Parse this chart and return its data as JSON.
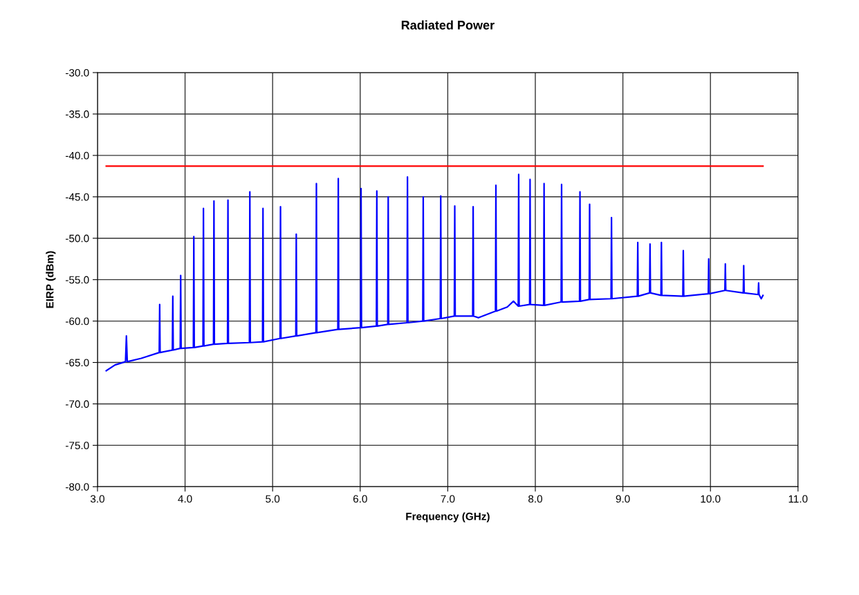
{
  "chart_data": {
    "type": "line",
    "title": "Radiated Power",
    "xlabel": "Frequency (GHz)",
    "ylabel": "EIRP (dBm)",
    "xlim": [
      3.0,
      11.0
    ],
    "ylim": [
      -80.0,
      -30.0
    ],
    "xticks": [
      {
        "value": 3,
        "label": "3.0"
      },
      {
        "value": 4,
        "label": "4.0"
      },
      {
        "value": 5,
        "label": "5.0"
      },
      {
        "value": 6,
        "label": "6.0"
      },
      {
        "value": 7,
        "label": "7.0"
      },
      {
        "value": 8,
        "label": "8.0"
      },
      {
        "value": 9,
        "label": "9.0"
      },
      {
        "value": 10,
        "label": "10.0"
      },
      {
        "value": 11,
        "label": "11.0"
      }
    ],
    "yticks": [
      {
        "value": -30,
        "label": "-30.0"
      },
      {
        "value": -35,
        "label": "-35.0"
      },
      {
        "value": -40,
        "label": "-40.0"
      },
      {
        "value": -45,
        "label": "-45.0"
      },
      {
        "value": -50,
        "label": "-50.0"
      },
      {
        "value": -55,
        "label": "-55.0"
      },
      {
        "value": -60,
        "label": "-60.0"
      },
      {
        "value": -65,
        "label": "-65.0"
      },
      {
        "value": -70,
        "label": "-70.0"
      },
      {
        "value": -75,
        "label": "-75.0"
      },
      {
        "value": -80,
        "label": "-80.0"
      }
    ],
    "grid": true,
    "marker": "none",
    "line_style": "solid",
    "series": [
      {
        "color": "#ff0000",
        "x": [
          3.1,
          10.6
        ],
        "values": [
          -41.3,
          -41.3
        ]
      },
      {
        "color": "#0000ff",
        "x": [
          3.1,
          3.2,
          3.32,
          3.33,
          3.34,
          3.5,
          3.705,
          3.71,
          3.715,
          3.855,
          3.86,
          3.865,
          3.945,
          3.95,
          3.955,
          4.095,
          4.1,
          4.105,
          4.205,
          4.21,
          4.215,
          4.325,
          4.33,
          4.335,
          4.485,
          4.49,
          4.495,
          4.735,
          4.74,
          4.745,
          4.885,
          4.89,
          4.895,
          5.085,
          5.09,
          5.095,
          5.265,
          5.27,
          5.275,
          5.495,
          5.5,
          5.505,
          5.745,
          5.75,
          5.755,
          6.005,
          6.01,
          6.015,
          6.185,
          6.19,
          6.195,
          6.315,
          6.32,
          6.325,
          6.535,
          6.54,
          6.545,
          6.715,
          6.72,
          6.725,
          6.915,
          6.92,
          6.925,
          7.075,
          7.08,
          7.085,
          7.285,
          7.29,
          7.295,
          7.35,
          7.545,
          7.55,
          7.555,
          7.68,
          7.75,
          7.805,
          7.81,
          7.815,
          7.935,
          7.94,
          7.945,
          8.095,
          8.1,
          8.105,
          8.295,
          8.3,
          8.305,
          8.505,
          8.51,
          8.515,
          8.615,
          8.62,
          8.625,
          8.865,
          8.87,
          8.875,
          9.165,
          9.17,
          9.175,
          9.305,
          9.31,
          9.315,
          9.435,
          9.44,
          9.445,
          9.685,
          9.69,
          9.695,
          9.975,
          9.98,
          9.985,
          10.165,
          10.17,
          10.175,
          10.375,
          10.38,
          10.385,
          10.545,
          10.55,
          10.555,
          10.58,
          10.6
        ],
        "values": [
          -66.0,
          -65.3,
          -64.9,
          -61.8,
          -64.9,
          -64.5,
          -63.8,
          -58.0,
          -63.8,
          -63.5,
          -57.0,
          -63.5,
          -63.3,
          -54.5,
          -63.3,
          -63.2,
          -49.8,
          -63.2,
          -63.0,
          -46.4,
          -63.0,
          -62.8,
          -45.5,
          -62.8,
          -62.7,
          -45.4,
          -62.7,
          -62.6,
          -44.4,
          -62.6,
          -62.5,
          -46.4,
          -62.5,
          -62.1,
          -46.2,
          -62.1,
          -61.8,
          -49.5,
          -61.8,
          -61.4,
          -43.4,
          -61.4,
          -61.0,
          -42.8,
          -61.0,
          -60.8,
          -44.0,
          -60.8,
          -60.6,
          -44.3,
          -60.6,
          -60.4,
          -45.0,
          -60.4,
          -60.2,
          -42.6,
          -60.2,
          -60.0,
          -45.0,
          -60.0,
          -59.7,
          -44.9,
          -59.7,
          -59.4,
          -46.1,
          -59.4,
          -59.4,
          -46.2,
          -59.4,
          -59.6,
          -58.8,
          -43.6,
          -58.8,
          -58.3,
          -57.6,
          -58.2,
          -42.3,
          -58.2,
          -58.0,
          -42.9,
          -58.0,
          -58.1,
          -43.4,
          -58.1,
          -57.7,
          -43.5,
          -57.7,
          -57.6,
          -44.4,
          -57.6,
          -57.4,
          -45.9,
          -57.4,
          -57.3,
          -47.5,
          -57.3,
          -57.0,
          -50.5,
          -57.0,
          -56.6,
          -50.7,
          -56.6,
          -56.9,
          -50.5,
          -56.9,
          -57.0,
          -51.5,
          -57.0,
          -56.7,
          -52.5,
          -56.7,
          -56.3,
          -53.1,
          -56.3,
          -56.6,
          -53.3,
          -56.6,
          -56.8,
          -55.4,
          -56.8,
          -57.3,
          -56.9
        ]
      }
    ]
  }
}
